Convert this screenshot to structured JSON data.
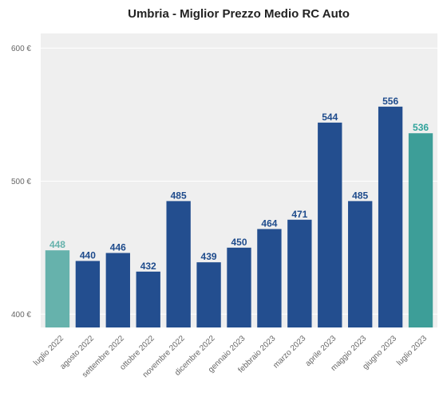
{
  "chart_data": {
    "type": "bar",
    "title": "Umbria - Miglior Prezzo Medio RC Auto",
    "xlabel": "",
    "ylabel": "",
    "categories": [
      "luglio 2022",
      "agosto 2022",
      "settembre 2022",
      "ottobre 2022",
      "novembre 2022",
      "dicembre 2022",
      "gennaio 2023",
      "febbraio 2023",
      "marzo 2023",
      "aprile 2023",
      "maggio 2023",
      "giugno 2023",
      "luglio 2023"
    ],
    "values": [
      448,
      440,
      446,
      432,
      485,
      439,
      450,
      464,
      471,
      544,
      485,
      556,
      536
    ],
    "value_labels": [
      "448",
      "440",
      "446",
      "432",
      "485",
      "439",
      "450",
      "464",
      "471",
      "544",
      "485",
      "556",
      "536"
    ],
    "ylim": [
      390,
      611
    ],
    "yticks": [
      400,
      500,
      600
    ],
    "ytick_labels": [
      "400 €",
      "500 €",
      "600 €"
    ],
    "grid": true,
    "legend": "none",
    "colors": {
      "bar": "#234e8f",
      "first_bar": "#66b2ac",
      "last_bar": "#3d9e98",
      "first_label": "#66b2ac",
      "last_label": "#2fa39b",
      "label": "#1e4b8c",
      "plot_bg": "#efefef",
      "grid": "#ffffff"
    }
  }
}
